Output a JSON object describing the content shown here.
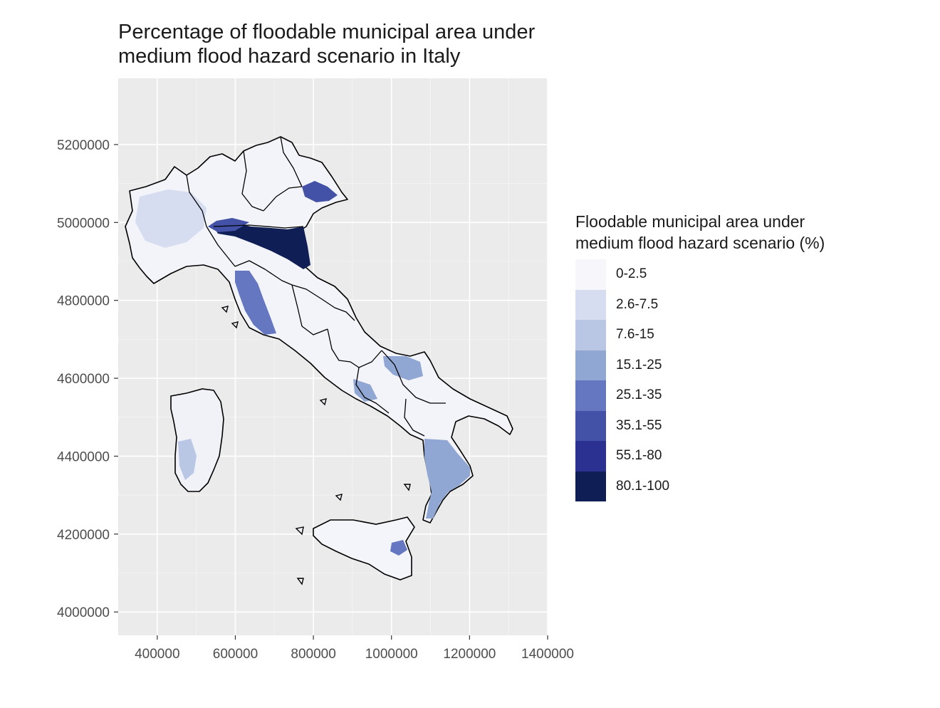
{
  "title": {
    "line1": "Percentage of floodable municipal area under",
    "line2": "medium flood hazard scenario in Italy"
  },
  "map": {
    "type": "choropleth",
    "region": "Italy",
    "x_axis": {
      "ticks": [
        "400000",
        "600000",
        "800000",
        "1000000",
        "1200000",
        "1400000"
      ],
      "tick_values": [
        400000,
        600000,
        800000,
        1000000,
        1200000,
        1400000
      ],
      "range": [
        300000,
        1400000
      ]
    },
    "y_axis": {
      "ticks": [
        "4000000",
        "4200000",
        "4400000",
        "4600000",
        "4800000",
        "5000000",
        "5200000"
      ],
      "tick_values": [
        4000000,
        4200000,
        4400000,
        4600000,
        4800000,
        5000000,
        5200000
      ],
      "range": [
        3940000,
        5370000
      ]
    },
    "panel_background": "#ebebeb",
    "grid": true,
    "legend": {
      "title_line1": "Floodable municipal area under",
      "title_line2": "medium flood hazard scenario (%)",
      "placement": "right",
      "classes": [
        {
          "label": "0-2.5",
          "color": "#f7f7fb"
        },
        {
          "label": "2.6-7.5",
          "color": "#d7ddf0"
        },
        {
          "label": "7.6-15",
          "color": "#b9c7e5"
        },
        {
          "label": "15.1-25",
          "color": "#90a6d3"
        },
        {
          "label": "25.1-35",
          "color": "#6577c0"
        },
        {
          "label": "35.1-55",
          "color": "#4352a7"
        },
        {
          "label": "55.1-80",
          "color": "#2b3190"
        },
        {
          "label": "80.1-100",
          "color": "#0f1e55"
        }
      ]
    }
  }
}
